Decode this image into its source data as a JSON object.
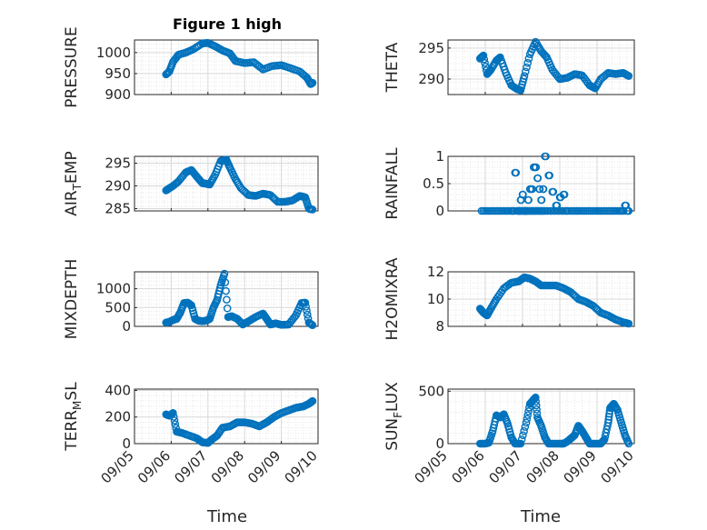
{
  "figure": {
    "title": "Figure 1 high",
    "xlabel": "Time",
    "xticklabels": [
      "09/05",
      "09/06",
      "09/07",
      "09/08",
      "09/09",
      "09/10"
    ],
    "marker_color": "#0072BD",
    "grid_color": "#d9d9d9",
    "axis_color": "#262626"
  },
  "chart_data": [
    {
      "type": "scatter",
      "ylabel": "PRESSURE",
      "ylim": [
        900,
        1030
      ],
      "yticks": [
        900,
        950,
        1000
      ],
      "x_days": [
        5.86,
        5.95,
        6.05,
        6.2,
        6.4,
        6.6,
        6.85,
        7.0,
        7.2,
        7.4,
        7.6,
        7.75,
        8.0,
        8.25,
        8.5,
        8.75,
        9.0,
        9.25,
        9.5,
        9.7,
        9.8,
        9.85
      ],
      "y": [
        948,
        955,
        978,
        995,
        1000,
        1008,
        1022,
        1023,
        1015,
        1005,
        998,
        980,
        975,
        977,
        960,
        968,
        970,
        963,
        955,
        940,
        925,
        928
      ]
    },
    {
      "type": "scatter",
      "ylabel": "THETA",
      "ylim": [
        287.5,
        296.3
      ],
      "yticks": [
        290,
        295
      ],
      "x_days": [
        5.86,
        5.95,
        6.05,
        6.15,
        6.3,
        6.4,
        6.55,
        6.7,
        6.85,
        6.95,
        7.05,
        7.2,
        7.35,
        7.5,
        7.65,
        7.8,
        8.0,
        8.2,
        8.4,
        8.6,
        8.8,
        8.95,
        9.1,
        9.3,
        9.5,
        9.7,
        9.85
      ],
      "y": [
        293.3,
        293.8,
        290.8,
        291.5,
        293.0,
        293.5,
        291.0,
        289.0,
        288.4,
        288.2,
        290.5,
        294.0,
        296.0,
        294.5,
        293.5,
        291.5,
        290.0,
        290.2,
        290.8,
        290.6,
        289.0,
        288.5,
        290.0,
        291.0,
        290.8,
        291.0,
        290.5
      ]
    },
    {
      "type": "scatter",
      "ylabel": "AIR_TEMP",
      "ylim": [
        284.5,
        296.5
      ],
      "yticks": [
        285,
        290,
        295
      ],
      "x_days": [
        5.86,
        5.95,
        6.05,
        6.2,
        6.4,
        6.55,
        6.7,
        6.85,
        6.95,
        7.05,
        7.2,
        7.35,
        7.5,
        7.6,
        7.75,
        7.9,
        8.1,
        8.3,
        8.5,
        8.7,
        8.9,
        9.1,
        9.3,
        9.5,
        9.65,
        9.75,
        9.85
      ],
      "y": [
        289.0,
        289.5,
        290.0,
        291.0,
        293.0,
        293.5,
        292.0,
        290.6,
        290.5,
        290.3,
        292.5,
        295.5,
        295.8,
        294.0,
        291.5,
        289.5,
        288.0,
        287.8,
        288.3,
        288.0,
        286.5,
        286.5,
        286.8,
        287.8,
        287.5,
        285.0,
        284.8
      ]
    },
    {
      "type": "scatter",
      "ylabel": "RAINFALL",
      "ylim": [
        0,
        1
      ],
      "yticks": [
        0,
        0.5,
        1
      ],
      "x_days": [
        5.9,
        6.1,
        6.3,
        6.5,
        6.7,
        6.8,
        6.9,
        6.95,
        7.0,
        7.05,
        7.1,
        7.15,
        7.2,
        7.25,
        7.3,
        7.35,
        7.4,
        7.45,
        7.5,
        7.55,
        7.6,
        7.7,
        7.8,
        7.9,
        8.0,
        8.1,
        8.2,
        8.4,
        8.6,
        8.8,
        9.0,
        9.2,
        9.4,
        9.6,
        9.75,
        9.85
      ],
      "y": [
        0,
        0,
        0,
        0,
        0,
        0.7,
        0,
        0.2,
        0.3,
        0,
        0,
        0.2,
        0.4,
        0.4,
        0.8,
        0.8,
        0.6,
        0.4,
        0.2,
        0.4,
        1.0,
        0.65,
        0.35,
        0.1,
        0.25,
        0.3,
        0,
        0,
        0,
        0,
        0,
        0,
        0,
        0,
        0.1,
        0
      ]
    },
    {
      "type": "scatter",
      "ylabel": "MIXDEPTH",
      "ylim": [
        0,
        1450
      ],
      "yticks": [
        0,
        500,
        1000
      ],
      "x_days": [
        5.86,
        5.95,
        6.05,
        6.15,
        6.25,
        6.35,
        6.45,
        6.55,
        6.65,
        6.75,
        6.85,
        6.95,
        7.05,
        7.15,
        7.25,
        7.35,
        7.45,
        7.55,
        7.65,
        7.8,
        7.95,
        8.1,
        8.3,
        8.5,
        8.6,
        8.7,
        8.85,
        9.0,
        9.2,
        9.4,
        9.55,
        9.65,
        9.75,
        9.85
      ],
      "y": [
        100,
        120,
        170,
        200,
        370,
        620,
        630,
        560,
        200,
        150,
        140,
        150,
        200,
        500,
        700,
        1100,
        1400,
        250,
        270,
        200,
        50,
        130,
        250,
        340,
        200,
        50,
        80,
        40,
        50,
        300,
        620,
        630,
        100,
        30
      ]
    },
    {
      "type": "scatter",
      "ylabel": "H2OMIXRA",
      "ylim": [
        8,
        12
      ],
      "yticks": [
        8,
        10,
        12
      ],
      "x_days": [
        5.86,
        5.95,
        6.05,
        6.15,
        6.3,
        6.5,
        6.7,
        6.9,
        7.05,
        7.2,
        7.35,
        7.5,
        7.7,
        7.9,
        8.1,
        8.3,
        8.5,
        8.7,
        8.9,
        9.1,
        9.3,
        9.5,
        9.7,
        9.85
      ],
      "y": [
        9.3,
        9.0,
        8.8,
        9.3,
        10.0,
        10.8,
        11.2,
        11.3,
        11.6,
        11.5,
        11.3,
        11.0,
        11.0,
        11.0,
        10.8,
        10.5,
        10.0,
        9.8,
        9.5,
        9.0,
        8.8,
        8.5,
        8.3,
        8.2
      ]
    },
    {
      "type": "scatter",
      "ylabel": "TERR_MSL",
      "ylim": [
        0,
        410
      ],
      "yticks": [
        0,
        200,
        400
      ],
      "x_days": [
        5.86,
        5.95,
        6.05,
        6.15,
        6.3,
        6.5,
        6.7,
        6.85,
        7.0,
        7.1,
        7.25,
        7.4,
        7.6,
        7.8,
        8.0,
        8.2,
        8.4,
        8.6,
        8.8,
        9.0,
        9.2,
        9.4,
        9.6,
        9.75,
        9.85
      ],
      "y": [
        220,
        210,
        230,
        90,
        80,
        60,
        40,
        10,
        5,
        30,
        60,
        120,
        130,
        160,
        160,
        150,
        130,
        160,
        200,
        230,
        250,
        270,
        280,
        300,
        320
      ]
    },
    {
      "type": "scatter",
      "ylabel": "SUN_FLUX",
      "ylim": [
        0,
        520
      ],
      "yticks": [
        0,
        500
      ],
      "x_days": [
        5.86,
        6.0,
        6.1,
        6.2,
        6.3,
        6.4,
        6.5,
        6.6,
        6.7,
        6.8,
        6.95,
        7.1,
        7.2,
        7.3,
        7.35,
        7.4,
        7.5,
        7.6,
        7.7,
        7.85,
        8.0,
        8.1,
        8.2,
        8.3,
        8.4,
        8.5,
        8.6,
        8.7,
        8.8,
        8.95,
        9.1,
        9.2,
        9.3,
        9.35,
        9.45,
        9.55,
        9.65,
        9.75,
        9.85
      ],
      "y": [
        0,
        0,
        10,
        120,
        270,
        250,
        280,
        190,
        60,
        0,
        0,
        200,
        380,
        420,
        440,
        250,
        170,
        60,
        0,
        0,
        0,
        0,
        20,
        50,
        80,
        170,
        120,
        60,
        0,
        0,
        0,
        40,
        200,
        340,
        380,
        320,
        200,
        80,
        0
      ]
    }
  ]
}
